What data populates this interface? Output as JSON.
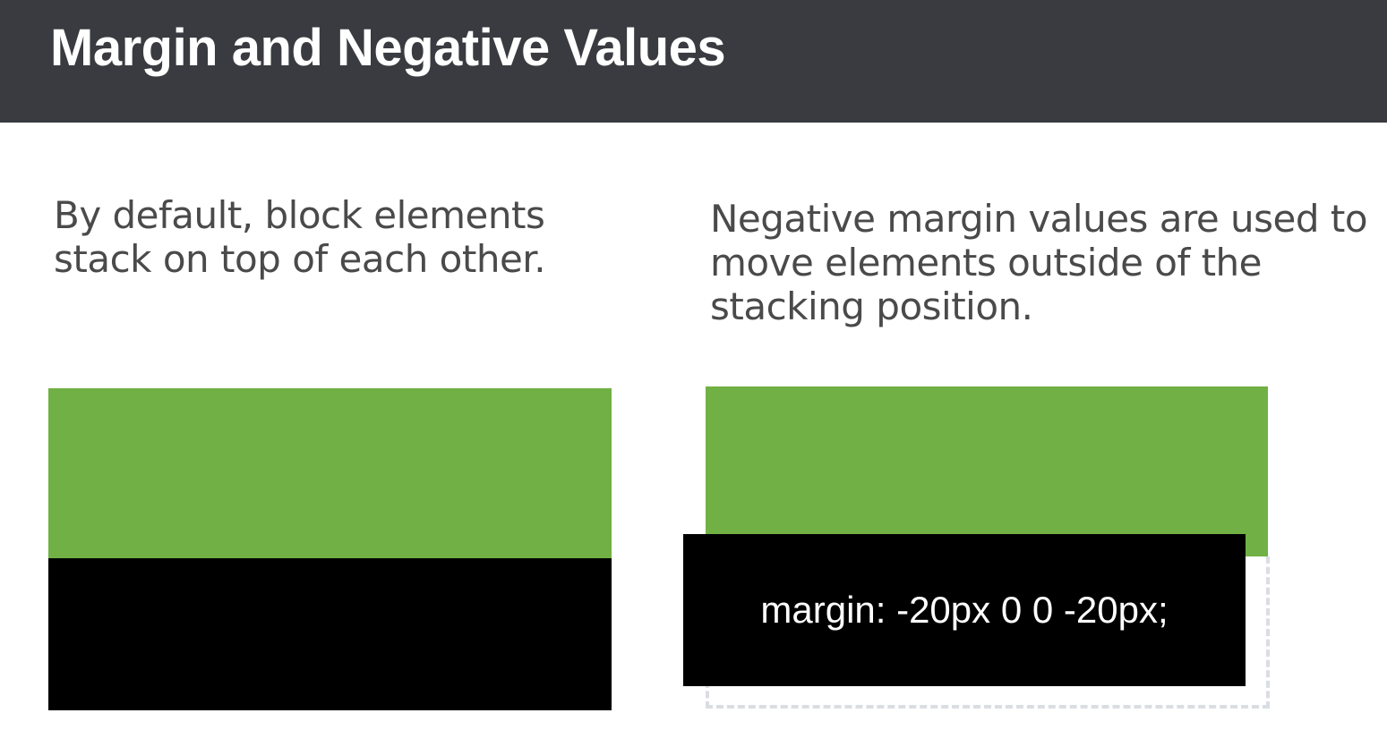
{
  "header": {
    "title": "Margin and Negative Values",
    "background_color": "#3a3b40"
  },
  "left_panel": {
    "caption": "By default, block elements\nstack on top of each other.",
    "blocks": [
      {
        "color": "#70b044"
      },
      {
        "color": "#000000"
      }
    ]
  },
  "right_panel": {
    "caption": "Negative margin values are used to\nmove elements outside of the\nstacking position.",
    "code_label": "margin: -20px 0 0 -20px;",
    "blocks": [
      {
        "color": "#70b044"
      },
      {
        "color": "#000000"
      }
    ],
    "ghost_outline_color": "#dadde2"
  }
}
